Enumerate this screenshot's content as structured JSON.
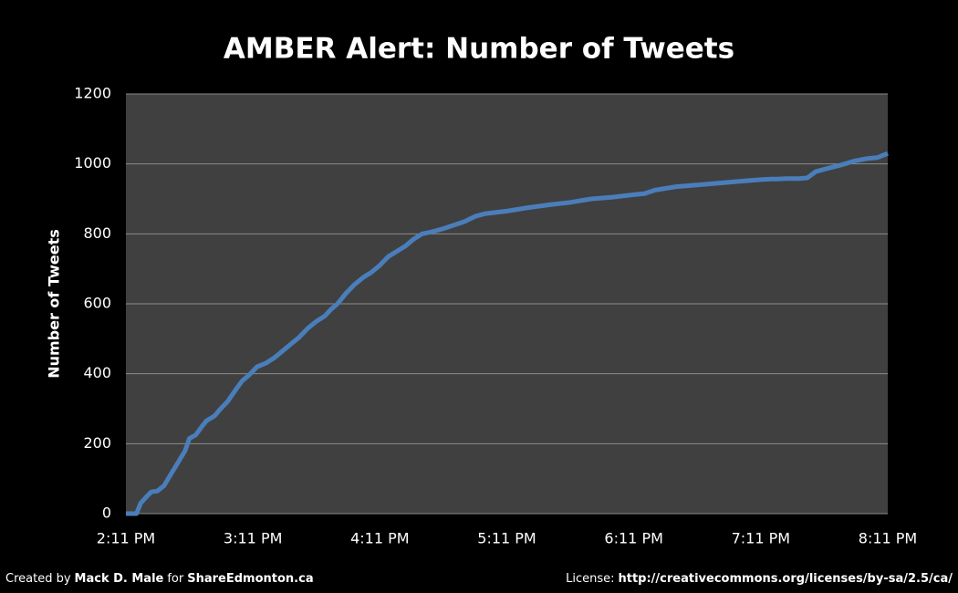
{
  "chart_data": {
    "type": "line",
    "title": "AMBER Alert: Number of Tweets",
    "y_label": "Number of Tweets",
    "x": [
      0,
      5,
      7,
      10,
      12,
      15,
      18,
      22,
      25,
      28,
      30,
      33,
      36,
      38,
      42,
      44,
      48,
      52,
      55,
      58,
      62,
      66,
      70,
      75,
      78,
      82,
      86,
      90,
      94,
      97,
      100,
      104,
      108,
      112,
      116,
      120,
      124,
      128,
      132,
      136,
      140,
      144,
      150,
      155,
      160,
      165,
      170,
      180,
      190,
      200,
      210,
      215,
      220,
      230,
      240,
      245,
      250,
      260,
      270,
      280,
      290,
      300,
      305,
      308,
      312,
      318,
      322,
      326,
      332,
      338,
      344,
      350,
      355,
      360
    ],
    "series": [
      {
        "name": "Number of Tweets",
        "color": "#4a7ebb",
        "values": [
          0,
          0,
          30,
          50,
          62,
          65,
          80,
          120,
          150,
          180,
          215,
          225,
          250,
          265,
          280,
          295,
          320,
          355,
          380,
          395,
          420,
          430,
          445,
          470,
          485,
          505,
          530,
          550,
          565,
          585,
          600,
          630,
          655,
          675,
          690,
          710,
          735,
          750,
          765,
          785,
          800,
          805,
          815,
          825,
          835,
          850,
          858,
          865,
          875,
          883,
          890,
          895,
          900,
          905,
          912,
          915,
          925,
          935,
          940,
          945,
          950,
          955,
          957,
          957,
          958,
          958,
          960,
          978,
          988,
          997,
          1008,
          1015,
          1018,
          1030
        ]
      }
    ],
    "xlim": [
      0,
      360
    ],
    "xticks": [
      {
        "value": 0,
        "label": "2:11 PM"
      },
      {
        "value": 60,
        "label": "3:11 PM"
      },
      {
        "value": 120,
        "label": "4:11 PM"
      },
      {
        "value": 180,
        "label": "5:11 PM"
      },
      {
        "value": 240,
        "label": "6:11 PM"
      },
      {
        "value": 300,
        "label": "7:11 PM"
      },
      {
        "value": 360,
        "label": "8:11 PM"
      }
    ],
    "ylim": [
      0,
      1200
    ],
    "yticks": [
      0,
      200,
      400,
      600,
      800,
      1000,
      1200
    ],
    "grid": true
  },
  "footer": {
    "credit": [
      "Created by",
      "Mack D. Male",
      "for",
      "ShareEdmonton.ca"
    ],
    "license": [
      "License:",
      "http://creativecommons.org/licenses/by-sa/2.5/ca/"
    ]
  }
}
